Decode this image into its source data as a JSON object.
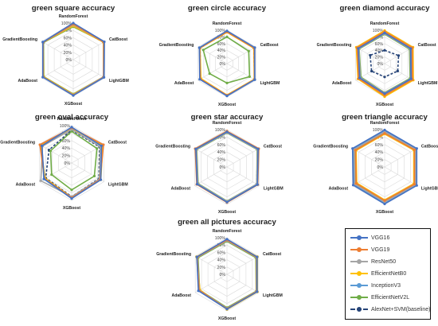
{
  "chart_data": [
    {
      "type": "radar",
      "title": "green square accuracy",
      "axes": [
        "RandomForest",
        "CatBoost",
        "LightGBM",
        "XGBoost",
        "AdaBoost",
        "GradientBoosting"
      ],
      "ticks": [
        "100%",
        "80%",
        "60%",
        "40%",
        "20%",
        "0%"
      ],
      "rlim": [
        0,
        100
      ],
      "series": [
        {
          "name": "VGG16",
          "values": [
            100,
            98,
            97,
            98,
            96,
            96
          ]
        },
        {
          "name": "VGG19",
          "values": [
            97,
            96,
            96,
            97,
            95,
            95
          ]
        },
        {
          "name": "ResNet50",
          "values": [
            95,
            96,
            95,
            96,
            95,
            95
          ]
        },
        {
          "name": "EfficientNetB0",
          "values": [
            92,
            95,
            95,
            95,
            94,
            95
          ]
        },
        {
          "name": "InceptionV3",
          "values": [
            98,
            97,
            96,
            97,
            95,
            96
          ]
        },
        {
          "name": "EfficientNetV2L",
          "values": [
            90,
            96,
            95,
            94,
            93,
            94
          ]
        },
        {
          "name": "AlexNet+SVM(baseline)",
          "values": [
            93,
            95,
            96,
            95,
            94,
            94
          ]
        }
      ]
    },
    {
      "type": "radar",
      "title": "green circle accuracy",
      "axes": [
        "RandomForest",
        "CatBoost",
        "LightGBM",
        "XGBoost",
        "AdaBoost",
        "GradientBoosting"
      ],
      "ticks": [
        "100%",
        "80%",
        "60%",
        "40%",
        "20%",
        "0%"
      ],
      "rlim": [
        0,
        100
      ],
      "series": [
        {
          "name": "VGG16",
          "values": [
            98,
            96,
            96,
            97,
            94,
            95
          ]
        },
        {
          "name": "VGG19",
          "values": [
            95,
            94,
            95,
            95,
            92,
            94
          ]
        },
        {
          "name": "ResNet50",
          "values": [
            96,
            95,
            95,
            96,
            93,
            94
          ]
        },
        {
          "name": "EfficientNetB0",
          "values": [
            94,
            93,
            94,
            94,
            90,
            93
          ]
        },
        {
          "name": "InceptionV3",
          "values": [
            97,
            95,
            96,
            96,
            93,
            95
          ]
        },
        {
          "name": "EfficientNetV2L",
          "values": [
            80,
            75,
            78,
            58,
            60,
            82
          ]
        },
        {
          "name": "AlexNet+SVM(baseline)",
          "values": [
            95,
            93,
            95,
            95,
            91,
            93
          ]
        }
      ]
    },
    {
      "type": "radar",
      "title": "green diamond accuracy",
      "axes": [
        "RandomForest",
        "CatBoost",
        "LightGBM",
        "XGBoost",
        "AdaBoost",
        "GradientBoosting"
      ],
      "ticks": [
        "100%",
        "80%",
        "60%",
        "40%",
        "20%",
        "0%"
      ],
      "rlim": [
        0,
        100
      ],
      "series": [
        {
          "name": "VGG16",
          "values": [
            92,
            90,
            91,
            90,
            86,
            91
          ]
        },
        {
          "name": "VGG19",
          "values": [
            96,
            95,
            96,
            95,
            90,
            95
          ]
        },
        {
          "name": "ResNet50",
          "values": [
            90,
            88,
            90,
            88,
            84,
            89
          ]
        },
        {
          "name": "EfficientNetB0",
          "values": [
            99,
            98,
            99,
            99,
            92,
            98
          ]
        },
        {
          "name": "InceptionV3",
          "values": [
            94,
            92,
            94,
            93,
            88,
            93
          ]
        },
        {
          "name": "EfficientNetV2L",
          "values": [
            88,
            86,
            88,
            87,
            82,
            88
          ]
        },
        {
          "name": "AlexNet+SVM(baseline)",
          "values": [
            40,
            48,
            45,
            40,
            45,
            50
          ]
        }
      ]
    },
    {
      "type": "radar",
      "title": "green oval accuracy",
      "axes": [
        "RandomForest",
        "CatBoost",
        "LightGBM",
        "XGBoost",
        "AdaBoost",
        "GradientBoosting"
      ],
      "ticks": [
        "100%",
        "80%",
        "60%",
        "40%",
        "20%",
        "0%"
      ],
      "rlim": [
        0,
        100
      ],
      "series": [
        {
          "name": "VGG16",
          "values": [
            96,
            92,
            90,
            95,
            85,
            92
          ]
        },
        {
          "name": "VGG19",
          "values": [
            94,
            98,
            88,
            93,
            84,
            98
          ]
        },
        {
          "name": "ResNet50",
          "values": [
            90,
            88,
            86,
            90,
            95,
            90
          ]
        },
        {
          "name": "EfficientNetB0",
          "values": [
            92,
            96,
            90,
            92,
            82,
            96
          ]
        },
        {
          "name": "InceptionV3",
          "values": [
            95,
            93,
            89,
            94,
            86,
            92
          ]
        },
        {
          "name": "EfficientNetV2L",
          "values": [
            85,
            78,
            70,
            72,
            62,
            65
          ]
        },
        {
          "name": "AlexNet+SVM(baseline)",
          "values": [
            88,
            86,
            84,
            90,
            80,
            70
          ]
        }
      ]
    },
    {
      "type": "radar",
      "title": "green star accuracy",
      "axes": [
        "RandomForest",
        "CatBoost",
        "LightGBM",
        "XGBoost",
        "AdaBoost",
        "GradientBoosting"
      ],
      "ticks": [
        "100%",
        "80%",
        "60%",
        "40%",
        "20%",
        "0%"
      ],
      "rlim": [
        0,
        100
      ],
      "series": [
        {
          "name": "VGG16",
          "values": [
            94,
            96,
            94,
            94,
            92,
            96
          ]
        },
        {
          "name": "VGG19",
          "values": [
            96,
            98,
            95,
            95,
            93,
            98
          ]
        },
        {
          "name": "ResNet50",
          "values": [
            92,
            94,
            92,
            92,
            90,
            94
          ]
        },
        {
          "name": "EfficientNetB0",
          "values": [
            95,
            97,
            94,
            93,
            91,
            97
          ]
        },
        {
          "name": "InceptionV3",
          "values": [
            93,
            95,
            93,
            93,
            91,
            95
          ]
        },
        {
          "name": "EfficientNetV2L",
          "values": [
            91,
            93,
            92,
            91,
            89,
            93
          ]
        },
        {
          "name": "AlexNet+SVM(baseline)",
          "values": [
            92,
            94,
            92,
            92,
            90,
            94
          ]
        }
      ]
    },
    {
      "type": "radar",
      "title": "green triangle accuracy",
      "axes": [
        "RandomForest",
        "CatBoost",
        "LightGBM",
        "XGBoost",
        "AdaBoost",
        "GradientBoosting"
      ],
      "ticks": [
        "100%",
        "80%",
        "60%",
        "40%",
        "20%",
        "0%"
      ],
      "rlim": [
        0,
        100
      ],
      "series": [
        {
          "name": "VGG16",
          "values": [
            99,
            99,
            99,
            99,
            97,
            99
          ]
        },
        {
          "name": "VGG19",
          "values": [
            90,
            92,
            92,
            90,
            88,
            90
          ]
        },
        {
          "name": "ResNet50",
          "values": [
            94,
            95,
            95,
            94,
            92,
            94
          ]
        },
        {
          "name": "EfficientNetB0",
          "values": [
            88,
            90,
            90,
            88,
            86,
            88
          ]
        },
        {
          "name": "InceptionV3",
          "values": [
            96,
            97,
            97,
            96,
            94,
            96
          ]
        },
        {
          "name": "EfficientNetV2L",
          "values": [
            92,
            93,
            93,
            92,
            90,
            92
          ]
        },
        {
          "name": "AlexNet+SVM(baseline)",
          "values": [
            95,
            96,
            96,
            95,
            93,
            95
          ]
        }
      ]
    },
    {
      "type": "radar",
      "title": "green all pictures accuracy",
      "axes": [
        "RandomForest",
        "CatBoost",
        "LightGBM",
        "XGBoost",
        "AdaBoost",
        "GradientBoosting"
      ],
      "ticks": [
        "100%",
        "80%",
        "60%",
        "40%",
        "20%",
        "0%"
      ],
      "rlim": [
        0,
        100
      ],
      "series": [
        {
          "name": "VGG16",
          "values": [
            96,
            95,
            95,
            95,
            90,
            95
          ]
        },
        {
          "name": "VGG19",
          "values": [
            94,
            94,
            94,
            94,
            88,
            94
          ]
        },
        {
          "name": "ResNet50",
          "values": [
            92,
            93,
            93,
            93,
            87,
            93
          ]
        },
        {
          "name": "EfficientNetB0",
          "values": [
            95,
            96,
            96,
            96,
            85,
            96
          ]
        },
        {
          "name": "InceptionV3",
          "values": [
            95,
            95,
            95,
            95,
            89,
            95
          ]
        },
        {
          "name": "EfficientNetV2L",
          "values": [
            90,
            91,
            92,
            91,
            86,
            91
          ]
        },
        {
          "name": "AlexNet+SVM(baseline)",
          "values": [
            93,
            93,
            94,
            93,
            87,
            93
          ]
        }
      ]
    }
  ],
  "legend": {
    "entries": [
      {
        "name": "VGG16",
        "color": "#4472C4",
        "dashed": false
      },
      {
        "name": "VGG19",
        "color": "#ED7D31",
        "dashed": false
      },
      {
        "name": "ResNet50",
        "color": "#A5A5A5",
        "dashed": false
      },
      {
        "name": "EfficientNetB0",
        "color": "#FFC000",
        "dashed": false
      },
      {
        "name": "InceptionV3",
        "color": "#5B9BD5",
        "dashed": false
      },
      {
        "name": "EfficientNetV2L",
        "color": "#70AD47",
        "dashed": false
      },
      {
        "name": "AlexNet+SVM(baseline)",
        "color": "#264478",
        "dashed": true
      }
    ]
  }
}
